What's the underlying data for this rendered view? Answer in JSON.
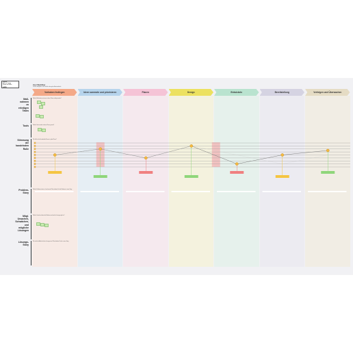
{
  "board": {
    "title": "User Workflow",
    "subtitle": "Phasen, Aufgaben und Gefühle entlang des Arbeitsablaufs",
    "legend": [
      "Legende",
      "Notiz zur Vorlage",
      "Phasen und Zeilen"
    ],
    "legend_tag": "LUCID"
  },
  "phases": [
    {
      "label": "Vorhaben festlegen",
      "color": "#f4a988",
      "bg": "#f7eae5"
    },
    {
      "label": "Ideen sammeln und priorisieren",
      "color": "#b6d4ec",
      "bg": "#e6eef4"
    },
    {
      "label": "Planen",
      "color": "#f5c3d6",
      "bg": "#f5e9ee"
    },
    {
      "label": "Design",
      "color": "#ece160",
      "bg": "#f4f2de"
    },
    {
      "label": "Entwickeln",
      "color": "#b9e3cf",
      "bg": "#e6f1ec"
    },
    {
      "label": "Bereitstellung",
      "color": "#d5d3e2",
      "bg": "#ecebf1"
    },
    {
      "label": "Verfolgen und Überwachen",
      "color": "#e5dcc4",
      "bg": "#f1ede4"
    }
  ],
  "rows": [
    {
      "label": "Maß-nahmen zu erledigen",
      "label_lines": [
        "Maß-",
        "nahmen",
        "zu",
        "erledigen",
        "Tasks"
      ],
      "desc": "Welche Maßnahmen müssen in dieser Phase erledigt werden?"
    },
    {
      "label": "Tools",
      "label_lines": [
        "Tools"
      ],
      "desc": "Welche Tools werden in dieser Phase genutzt?"
    },
    {
      "label": "Stimmung der handelnden Rolle",
      "label_lines": [
        "Stimmung",
        "der",
        "handelnden",
        "Rolle"
      ],
      "desc": "Wie fühlt sich die handelnde Person in jeder Phase?"
    },
    {
      "label": "Problem-Story",
      "label_lines": [
        "Problem-",
        "Story"
      ],
      "desc": "Welche Probleme treten auf und warum? Beschreiben Sie die Probleme in einer Story."
    },
    {
      "label": "Mögliche Ursachen und Lösungen",
      "label_lines": [
        "Mögl.",
        "Ursachen,",
        "Schwächen,",
        "und",
        "mögliche",
        "Lösungen"
      ],
      "desc": "Welche Ursachen haben die Probleme und welche Lösungen gibt es?"
    },
    {
      "label": "Lösungs-Story",
      "label_lines": [
        "Lösungs-",
        "Story"
      ],
      "desc": "Wie sieht der Ablauf mit den Lösungen aus? Beschreiben Sie ihn in einer Story."
    }
  ],
  "chart_data": {
    "type": "line",
    "categories": [
      "Vorhaben festlegen",
      "Ideen sammeln und priorisieren",
      "Planen",
      "Design",
      "Entwickeln",
      "Bereitstellung",
      "Verfolgen und Überwachen"
    ],
    "series": [
      {
        "values": [
          2,
          4,
          1,
          5,
          -1,
          2,
          3.5
        ]
      },
      {
        "values": [
          2,
          4,
          1,
          5,
          2,
          -1,
          2
        ]
      }
    ],
    "ylim": [
      -2,
      6
    ],
    "grid": true
  },
  "colors": {
    "line": "#7a7a7a",
    "dot": "#f5b942",
    "emotion_good": "#8fd67a",
    "emotion_bad": "#f08080",
    "emotion_neutral": "#f5c542",
    "highlight": "#f4b7b7"
  }
}
